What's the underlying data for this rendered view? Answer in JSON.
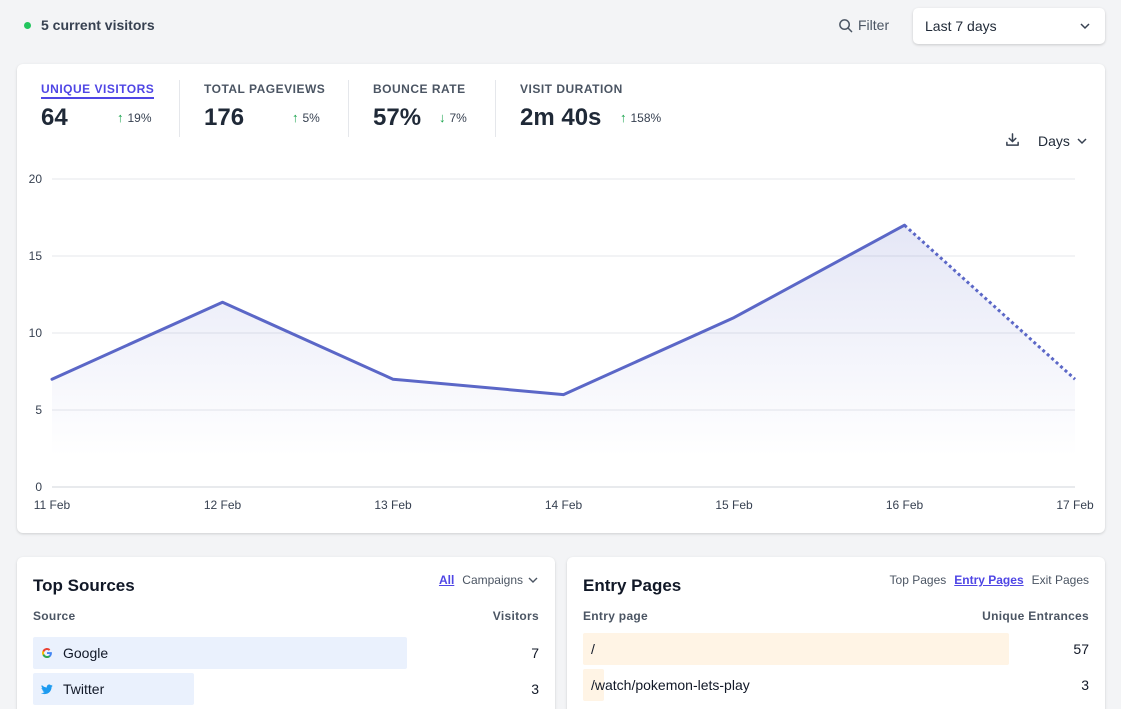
{
  "header": {
    "current_visitors": "5 current visitors",
    "filter_label": "Filter",
    "date_range": "Last 7 days"
  },
  "stats": [
    {
      "label": "UNIQUE VISITORS",
      "value": "64",
      "change": "19%",
      "direction": "up",
      "active": true
    },
    {
      "label": "TOTAL PAGEVIEWS",
      "value": "176",
      "change": "5%",
      "direction": "up",
      "active": false
    },
    {
      "label": "BOUNCE RATE",
      "value": "57%",
      "change": "7%",
      "direction": "down",
      "active": false
    },
    {
      "label": "VISIT DURATION",
      "value": "2m 40s",
      "change": "158%",
      "direction": "up",
      "active": false
    }
  ],
  "chart_toolbar": {
    "download_icon": "download-icon",
    "interval_label": "Days"
  },
  "chart_data": {
    "type": "line",
    "x": [
      "11 Feb",
      "12 Feb",
      "13 Feb",
      "14 Feb",
      "15 Feb",
      "16 Feb",
      "17 Feb"
    ],
    "series": [
      {
        "values": [
          7,
          12,
          7,
          6,
          11,
          17,
          7
        ],
        "color": "#5b67c7",
        "partial_last_segment_dashed": true
      }
    ],
    "yticks": [
      0,
      5,
      10,
      15,
      20
    ],
    "ylim": [
      0,
      20
    ],
    "grid": true
  },
  "top_sources": {
    "title": "Top Sources",
    "tabs": [
      {
        "label": "All",
        "active": true
      },
      {
        "label": "Campaigns",
        "active": false
      }
    ],
    "col_source": "Source",
    "col_visitors": "Visitors",
    "rows": [
      {
        "label": "Google",
        "value": "7",
        "icon": "google-icon",
        "fraction": 1.0
      },
      {
        "label": "Twitter",
        "value": "3",
        "icon": "twitter-icon",
        "fraction": 0.43
      }
    ],
    "bar_color": "#eaf1fd"
  },
  "entry_pages": {
    "title": "Entry Pages",
    "tabs": [
      {
        "label": "Top Pages",
        "active": false
      },
      {
        "label": "Entry Pages",
        "active": true
      },
      {
        "label": "Exit Pages",
        "active": false
      }
    ],
    "col_page": "Entry page",
    "col_entrances": "Unique Entrances",
    "rows": [
      {
        "label": "/",
        "value": "57",
        "fraction": 1.0
      },
      {
        "label": "/watch/pokemon-lets-play",
        "value": "3",
        "fraction": 0.05
      }
    ],
    "bar_color": "#fff4e5"
  }
}
